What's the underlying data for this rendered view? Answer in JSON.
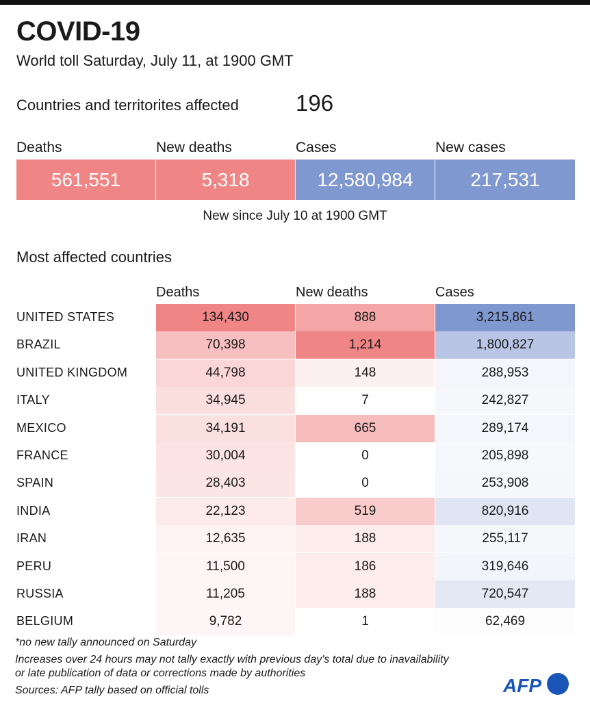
{
  "header": {
    "title": "COVID-19",
    "subtitle": "World toll Saturday, July 11, at 1900 GMT"
  },
  "countries": {
    "label": "Countries and territorites affected",
    "value": "196"
  },
  "summary": [
    {
      "label": "Deaths",
      "value": "561,551",
      "color": "#f08585"
    },
    {
      "label": "New deaths",
      "value": "5,318",
      "color": "#f08585"
    },
    {
      "label": "Cases",
      "value": "12,580,984",
      "color": "#8098d0"
    },
    {
      "label": "New cases",
      "value": "217,531",
      "color": "#8098d0"
    }
  ],
  "new_since": "New since  July 10 at 1900 GMT",
  "table_title": "Most affected countries",
  "chart_data": {
    "type": "table",
    "columns": [
      "Deaths",
      "New deaths",
      "Cases"
    ],
    "rows": [
      {
        "country": "UNITED STATES",
        "deaths": 134430,
        "new_deaths": 888,
        "cases": 3215861
      },
      {
        "country": "BRAZIL",
        "deaths": 70398,
        "new_deaths": 1214,
        "cases": 1800827
      },
      {
        "country": "UNITED KINGDOM",
        "deaths": 44798,
        "new_deaths": 148,
        "cases": 288953
      },
      {
        "country": "ITALY",
        "deaths": 34945,
        "new_deaths": 7,
        "cases": 242827
      },
      {
        "country": "MEXICO",
        "deaths": 34191,
        "new_deaths": 665,
        "cases": 289174
      },
      {
        "country": "FRANCE",
        "deaths": 30004,
        "new_deaths": 0,
        "cases": 205898
      },
      {
        "country": "SPAIN",
        "deaths": 28403,
        "new_deaths": 0,
        "cases": 253908
      },
      {
        "country": "INDIA",
        "deaths": 22123,
        "new_deaths": 519,
        "cases": 820916
      },
      {
        "country": "IRAN",
        "deaths": 12635,
        "new_deaths": 188,
        "cases": 255117
      },
      {
        "country": "PERU",
        "deaths": 11500,
        "new_deaths": 186,
        "cases": 319646
      },
      {
        "country": "RUSSIA",
        "deaths": 11205,
        "new_deaths": 188,
        "cases": 720547
      },
      {
        "country": "BELGIUM",
        "deaths": 9782,
        "new_deaths": 1,
        "cases": 62469
      }
    ],
    "colors": {
      "deaths": "#f08585",
      "cases": "#8098d0"
    }
  },
  "footnotes": {
    "note1": "*no new tally announced on Saturday",
    "note2": "Increases over 24 hours may not tally exactly with previous day's total due to inavailability",
    "note3": "or late publication of data or corrections made by authorities",
    "sources": "Sources: AFP tally based on official tolls"
  },
  "logo": {
    "text": "AFP",
    "color": "#1a56b8"
  }
}
